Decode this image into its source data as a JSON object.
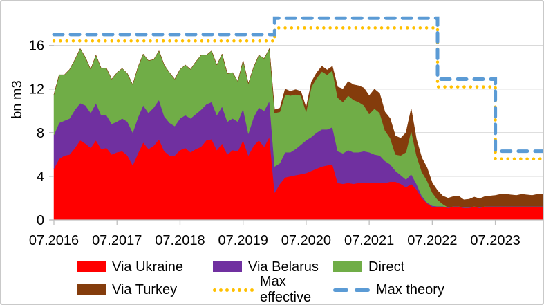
{
  "figure": {
    "background": "#FFFFFF",
    "border_color": "#C9C9C9"
  },
  "chart_data": {
    "type": "area",
    "stacked": true,
    "title": "",
    "xlabel": "",
    "ylabel": "bn m3",
    "unit": "bn m3",
    "grid": true,
    "grid_color": "#D9D9D9",
    "axis_color": "#BFBFBF",
    "legend_position": "bottom",
    "yticks": [
      0,
      4,
      8,
      12,
      16
    ],
    "ylim": [
      0,
      19.4
    ],
    "xtick_labels": [
      "07.2016",
      "07.2017",
      "07.2018",
      "07.2019",
      "07.2020",
      "07.2021",
      "07.2022",
      "07.2023"
    ],
    "months": [
      "07.2016",
      "08.2016",
      "09.2016",
      "10.2016",
      "11.2016",
      "12.2016",
      "01.2017",
      "02.2017",
      "03.2017",
      "04.2017",
      "05.2017",
      "06.2017",
      "07.2017",
      "08.2017",
      "09.2017",
      "10.2017",
      "11.2017",
      "12.2017",
      "01.2018",
      "02.2018",
      "03.2018",
      "04.2018",
      "05.2018",
      "06.2018",
      "07.2018",
      "08.2018",
      "09.2018",
      "10.2018",
      "11.2018",
      "12.2018",
      "01.2019",
      "02.2019",
      "03.2019",
      "04.2019",
      "05.2019",
      "06.2019",
      "07.2019",
      "08.2019",
      "09.2019",
      "10.2019",
      "11.2019",
      "12.2019",
      "01.2020",
      "02.2020",
      "03.2020",
      "04.2020",
      "05.2020",
      "06.2020",
      "07.2020",
      "08.2020",
      "09.2020",
      "10.2020",
      "11.2020",
      "12.2020",
      "01.2021",
      "02.2021",
      "03.2021",
      "04.2021",
      "05.2021",
      "06.2021",
      "07.2021",
      "08.2021",
      "09.2021",
      "10.2021",
      "11.2021",
      "12.2021",
      "01.2022",
      "02.2022",
      "03.2022",
      "04.2022",
      "05.2022",
      "06.2022",
      "07.2022",
      "08.2022",
      "09.2022",
      "10.2022",
      "11.2022",
      "12.2022",
      "01.2023",
      "02.2023",
      "03.2023",
      "04.2023",
      "05.2023",
      "06.2023",
      "07.2023",
      "08.2023",
      "09.2023",
      "10.2023",
      "11.2023",
      "12.2023",
      "01.2024",
      "02.2024",
      "03.2024",
      "04.2024"
    ],
    "series": [
      {
        "name": "Via Ukraine",
        "color": "#FF0000",
        "values": [
          4.7,
          5.6,
          5.9,
          6.0,
          6.6,
          7.3,
          7.0,
          6.6,
          7.3,
          6.5,
          6.6,
          6.0,
          6.2,
          6.3,
          5.9,
          5.0,
          6.1,
          7.1,
          6.5,
          6.8,
          7.4,
          6.3,
          5.9,
          5.9,
          6.4,
          6.6,
          6.2,
          6.5,
          6.7,
          7.3,
          7.4,
          6.4,
          7.0,
          6.0,
          6.4,
          6.3,
          7.3,
          5.9,
          6.8,
          7.3,
          6.7,
          7.6,
          2.5,
          3.3,
          3.9,
          4.0,
          4.1,
          4.2,
          4.3,
          4.5,
          4.7,
          4.9,
          5.0,
          5.1,
          3.4,
          3.3,
          3.4,
          3.3,
          3.4,
          3.4,
          3.4,
          3.4,
          3.4,
          3.4,
          3.5,
          3.5,
          3.3,
          3.0,
          3.3,
          2.8,
          2.0,
          1.5,
          1.2,
          1.2,
          1.2,
          1.1,
          1.2,
          1.2,
          1.1,
          1.1,
          1.2,
          1.1,
          1.2,
          1.2,
          1.2,
          1.2,
          1.2,
          1.2,
          1.2,
          1.2,
          1.2,
          1.2,
          1.2,
          1.2
        ]
      },
      {
        "name": "Via Belarus",
        "color": "#7030A0",
        "values": [
          3.1,
          3.3,
          3.2,
          3.3,
          3.5,
          3.4,
          3.5,
          3.2,
          3.4,
          3.1,
          3.0,
          2.8,
          2.8,
          3.0,
          3.1,
          3.0,
          3.3,
          3.4,
          3.3,
          3.5,
          3.6,
          3.2,
          3.0,
          2.7,
          2.9,
          3.0,
          3.1,
          3.2,
          3.4,
          3.3,
          3.4,
          3.2,
          3.4,
          3.0,
          2.9,
          2.7,
          2.9,
          2.0,
          2.6,
          3.0,
          3.3,
          3.3,
          2.4,
          1.9,
          2.3,
          2.2,
          2.4,
          2.7,
          3.0,
          3.1,
          3.3,
          3.4,
          3.3,
          3.4,
          2.9,
          2.8,
          3.0,
          2.9,
          2.8,
          2.9,
          2.8,
          2.6,
          2.5,
          2.0,
          1.6,
          1.0,
          0.8,
          0.7,
          0.9,
          0.5,
          0.2,
          0.1,
          0.1,
          0.05,
          0.05,
          0.05,
          0.05,
          0.05,
          0.05,
          0.05,
          0.05,
          0.05,
          0.05,
          0.05,
          0.05,
          0.05,
          0.05,
          0.05,
          0.05,
          0.05,
          0.05,
          0.05,
          0.05,
          0.05
        ]
      },
      {
        "name": "Direct",
        "color": "#70AD47",
        "values": [
          3.7,
          4.4,
          4.2,
          4.5,
          4.6,
          5.0,
          4.4,
          4.0,
          4.4,
          4.3,
          4.3,
          4.1,
          4.5,
          4.6,
          4.4,
          4.4,
          4.6,
          4.7,
          4.8,
          4.4,
          4.5,
          4.7,
          4.6,
          4.3,
          4.5,
          4.6,
          4.5,
          4.8,
          5.0,
          4.5,
          4.7,
          4.6,
          4.8,
          4.4,
          4.2,
          3.7,
          4.4,
          4.6,
          4.6,
          4.8,
          4.8,
          4.8,
          4.9,
          4.7,
          5.3,
          5.2,
          5.0,
          4.5,
          2.6,
          4.6,
          5.0,
          5.3,
          5.0,
          5.2,
          4.9,
          4.7,
          5.0,
          4.8,
          4.6,
          4.2,
          3.5,
          4.2,
          3.9,
          2.8,
          2.4,
          1.5,
          1.8,
          2.5,
          4.0,
          2.6,
          2.2,
          2.0,
          1.2,
          0.6,
          0.2,
          0,
          0,
          0,
          0,
          0,
          0,
          0,
          0,
          0,
          0,
          0,
          0,
          0,
          0,
          0,
          0,
          0,
          0,
          0
        ]
      },
      {
        "name": "Via Turkey",
        "color": "#843C0C",
        "values": [
          0,
          0,
          0,
          0,
          0,
          0,
          0,
          0,
          0,
          0,
          0,
          0,
          0,
          0,
          0,
          0,
          0,
          0,
          0,
          0,
          0,
          0,
          0,
          0,
          0,
          0,
          0,
          0,
          0,
          0,
          0,
          0,
          0,
          0,
          0,
          0,
          0,
          0,
          0,
          0,
          0,
          0,
          0.3,
          0.35,
          0.5,
          0.4,
          0.45,
          0.4,
          0.4,
          0.45,
          0.5,
          0.5,
          0.45,
          0.4,
          1.0,
          1.2,
          1.3,
          1.4,
          1.5,
          1.6,
          1.7,
          1.8,
          1.8,
          1.7,
          1.8,
          1.7,
          1.6,
          1.8,
          2.0,
          1.5,
          1.3,
          1.2,
          0.9,
          0.85,
          0.75,
          0.85,
          0.9,
          0.95,
          0.7,
          0.75,
          0.85,
          0.8,
          0.9,
          0.95,
          1.0,
          1.1,
          1.1,
          1.05,
          1.0,
          1.1,
          1.05,
          1.0,
          1.1,
          1.1
        ]
      }
    ],
    "lines": [
      {
        "name": "Max effective",
        "color": "#FFC000",
        "style": "dotted",
        "steps": [
          {
            "from": "07.2016",
            "value": 16.4
          },
          {
            "from": "01.2020",
            "value": 17.6
          },
          {
            "from": "08.2022",
            "value": 12.2
          },
          {
            "from": "07.2023",
            "value": 5.6
          }
        ]
      },
      {
        "name": "Max theory",
        "color": "#5B9BD5",
        "style": "dashed",
        "steps": [
          {
            "from": "07.2016",
            "value": 17.0
          },
          {
            "from": "01.2020",
            "value": 18.5
          },
          {
            "from": "08.2022",
            "value": 12.9
          },
          {
            "from": "07.2023",
            "value": 6.3
          }
        ]
      }
    ]
  },
  "legend": {
    "items": [
      {
        "label": "Via Ukraine",
        "color": "#FF0000",
        "swatch": "box"
      },
      {
        "label": "Via Belarus",
        "color": "#7030A0",
        "swatch": "box"
      },
      {
        "label": "Direct",
        "color": "#70AD47",
        "swatch": "box"
      },
      {
        "label": "Via Turkey",
        "color": "#843C0C",
        "swatch": "box"
      },
      {
        "label": "Max effective",
        "color": "#FFC000",
        "swatch": "dots"
      },
      {
        "label": "Max theory",
        "color": "#5B9BD5",
        "swatch": "dashes"
      }
    ]
  }
}
